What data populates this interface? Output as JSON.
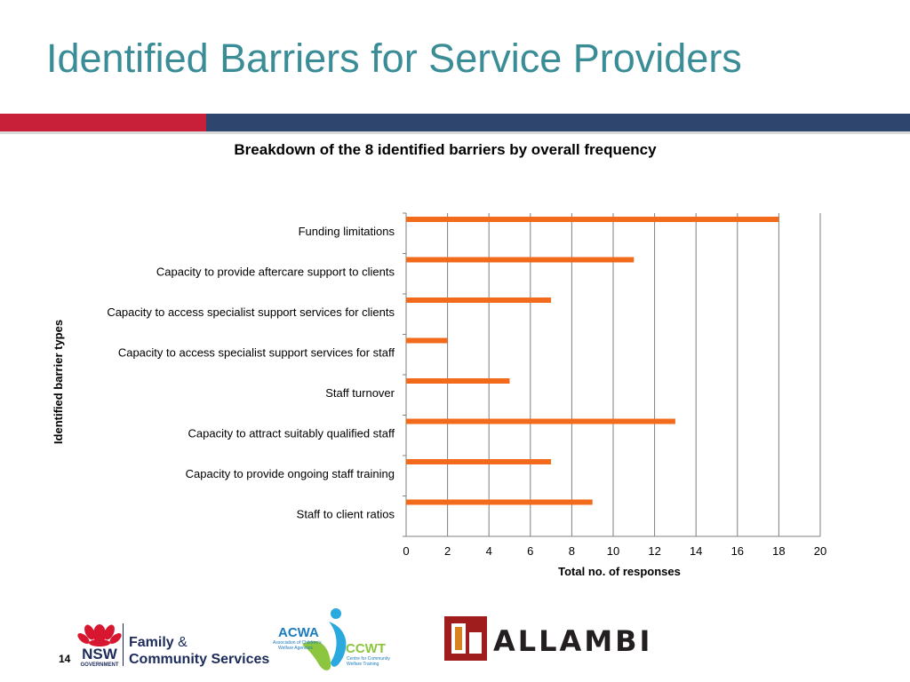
{
  "slide": {
    "title": "Identified Barriers for Service Providers",
    "page_number": "14"
  },
  "colors": {
    "title": "#3a8d96",
    "divider_red": "#c9203a",
    "divider_blue": "#2e456e",
    "bar": "#f26b1d"
  },
  "chart_data": {
    "type": "bar",
    "orientation": "horizontal",
    "title": "Breakdown of the 8 identified barriers by overall frequency",
    "xlabel": "Total no. of responses",
    "ylabel": "Identified  barrier types",
    "categories": [
      "Funding limitations",
      "Capacity to provide aftercare support to clients",
      "Capacity to access specialist support services for clients",
      "Capacity to access specialist support services for staff",
      "Staff turnover",
      "Capacity to attract suitably qualified staff",
      "Capacity to provide ongoing staff training",
      "Staff to client ratios"
    ],
    "values": [
      18,
      11,
      7,
      2,
      5,
      13,
      7,
      9
    ],
    "xlim": [
      0,
      20
    ],
    "xticks": [
      "0",
      "2",
      "4",
      "6",
      "8",
      "10",
      "12",
      "14",
      "16",
      "18",
      "20"
    ],
    "grid": true,
    "legend": "none"
  },
  "logos": {
    "nsw_line1": "NSW",
    "nsw_line2": "GOVERNMENT",
    "facs_line1": "Family",
    "facs_amp": "&",
    "facs_line2": "Community Services",
    "acwa": "ACWA",
    "acwa_sub1": "Association of Children's",
    "acwa_sub2": "Welfare Agencies",
    "ccwt": "CCWT",
    "ccwt_sub1": "Centre for Community",
    "ccwt_sub2": "Welfare Training",
    "allambi": "ALLAMBI"
  }
}
